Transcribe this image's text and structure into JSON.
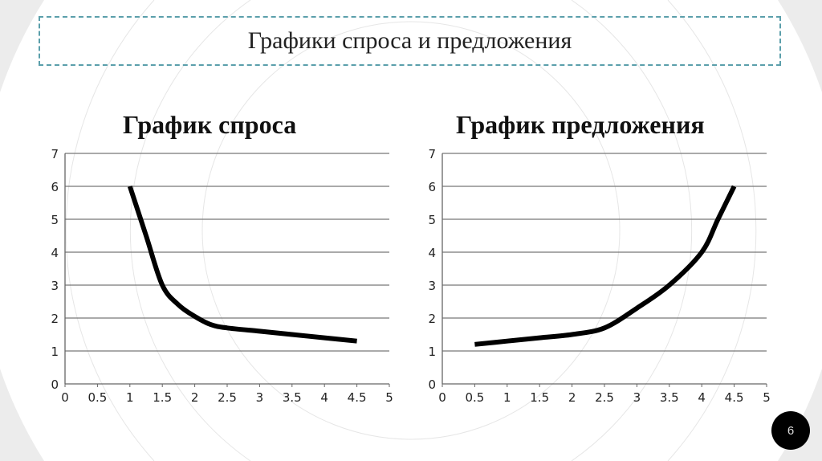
{
  "slide": {
    "title": "Графики спроса и предложения",
    "number": "6",
    "accent_color": "#5b9fab"
  },
  "chart_data": [
    {
      "type": "line",
      "title": "График спроса",
      "xlim": [
        0,
        5
      ],
      "ylim": [
        0,
        7
      ],
      "x_ticks": [
        "0",
        "0.5",
        "1",
        "1.5",
        "2",
        "2.5",
        "3",
        "3.5",
        "4",
        "4.5",
        "5"
      ],
      "y_ticks": [
        "0",
        "1",
        "2",
        "3",
        "4",
        "5",
        "6",
        "7"
      ],
      "grid": "horizontal",
      "line_color": "#000000",
      "x": [
        1,
        1.25,
        1.5,
        1.75,
        2,
        2.25,
        2.5,
        3,
        3.5,
        4,
        4.5
      ],
      "y": [
        6,
        4.5,
        3,
        2.4,
        2.05,
        1.8,
        1.7,
        1.6,
        1.5,
        1.4,
        1.3
      ]
    },
    {
      "type": "line",
      "title": "График предложения",
      "xlim": [
        0,
        5
      ],
      "ylim": [
        0,
        7
      ],
      "x_ticks": [
        "0",
        "0.5",
        "1",
        "1.5",
        "2",
        "2.5",
        "3",
        "3.5",
        "4",
        "4.5",
        "5"
      ],
      "y_ticks": [
        "0",
        "1",
        "2",
        "3",
        "4",
        "5",
        "6",
        "7"
      ],
      "grid": "horizontal",
      "line_color": "#000000",
      "x": [
        0.5,
        1,
        1.5,
        2,
        2.5,
        3,
        3.5,
        4,
        4.25,
        4.5
      ],
      "y": [
        1.2,
        1.3,
        1.4,
        1.5,
        1.7,
        2.3,
        3,
        4,
        5,
        6
      ]
    }
  ]
}
